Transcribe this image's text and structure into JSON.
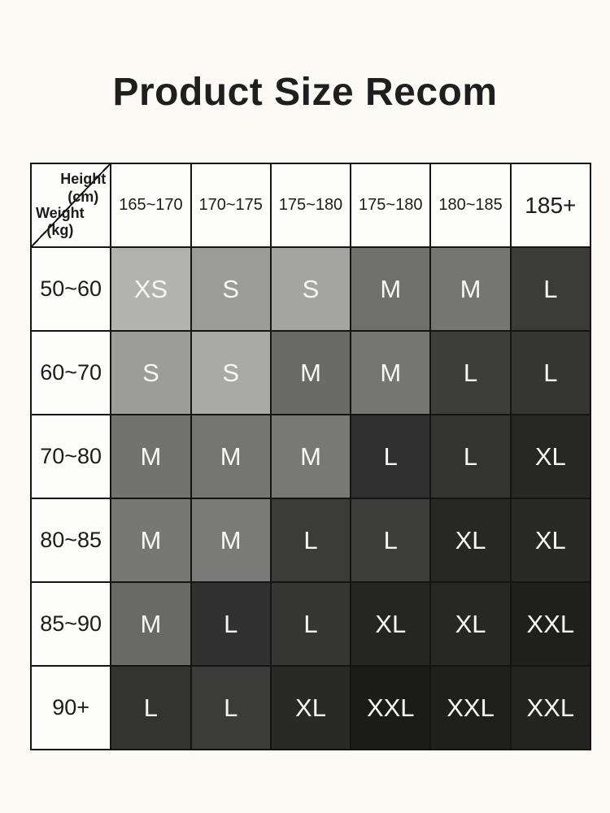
{
  "title": "Product Size Recom",
  "table": {
    "corner": {
      "height_label": "Height\n(cm)",
      "weight_label": "Weight\n(kg)"
    }
  },
  "chart_data": {
    "type": "table",
    "title": "Product Size Recom",
    "column_axis_label": "Height (cm)",
    "row_axis_label": "Weight (kg)",
    "columns": [
      "165~170",
      "170~175",
      "175~180",
      "175~180",
      "180~185",
      "185+"
    ],
    "rows": [
      "50~60",
      "60~70",
      "70~80",
      "80~85",
      "85~90",
      "90+"
    ],
    "cells": [
      [
        "XS",
        "S",
        "S",
        "M",
        "M",
        "L"
      ],
      [
        "S",
        "S",
        "M",
        "M",
        "L",
        "L"
      ],
      [
        "M",
        "M",
        "M",
        "L",
        "L",
        "XL"
      ],
      [
        "M",
        "M",
        "L",
        "L",
        "XL",
        "XL"
      ],
      [
        "M",
        "L",
        "L",
        "XL",
        "XL",
        "XXL"
      ],
      [
        "L",
        "L",
        "XL",
        "XXL",
        "XXL",
        "XXL"
      ]
    ],
    "cell_colors": [
      [
        "#b2b2b0",
        "#9b9b99",
        "#a4a4a2",
        "#6f6f6d",
        "#757573",
        "#3b3b39"
      ],
      [
        "#9c9c9a",
        "#a9a9a7",
        "#6a6a68",
        "#757573",
        "#3d3d3b",
        "#353533"
      ],
      [
        "#727270",
        "#747472",
        "#787876",
        "#303030",
        "#333331",
        "#272725"
      ],
      [
        "#777775",
        "#7a7a78",
        "#3b3b39",
        "#3d3d3b",
        "#272725",
        "#292927"
      ],
      [
        "#696967",
        "#313131",
        "#363634",
        "#252523",
        "#272725",
        "#1f1f1d"
      ],
      [
        "#333331",
        "#3b3b39",
        "#292927",
        "#1b1b19",
        "#1f1f1d",
        "#232321"
      ]
    ],
    "cell_text_color": "#f6f6f6",
    "border_color": "#141414",
    "header_bg": "#fdfdfc",
    "page_bg": "#fbfaf5"
  }
}
